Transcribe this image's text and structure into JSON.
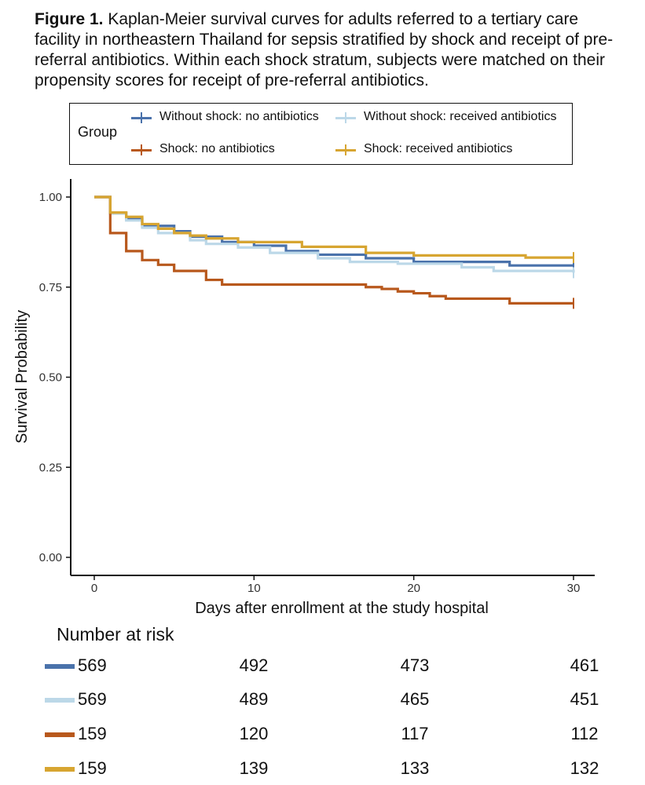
{
  "caption": {
    "label": "Figure 1.",
    "text": "Kaplan-Meier survival curves for adults referred to a tertiary care facility in northeastern Thailand for sepsis stratified by shock and receipt of pre-referral antibiotics. Within each shock stratum, subjects were matched on their propensity scores for receipt of pre-referral antibiotics."
  },
  "legend": {
    "title": "Group",
    "items": [
      {
        "label": "Without shock: no antibiotics",
        "color": "#4a72ab"
      },
      {
        "label": "Without shock: received antibiotics",
        "color": "#bcd8e8"
      },
      {
        "label": "Shock: no antibiotics",
        "color": "#b8581c"
      },
      {
        "label": "Shock: received antibiotics",
        "color": "#d7a531"
      }
    ]
  },
  "chart_data": {
    "type": "line",
    "subtype": "kaplan-meier step",
    "xlabel": "Days after enrollment at the study hospital",
    "ylabel": "Survival Probability",
    "xlim": [
      0,
      30
    ],
    "ylim": [
      0,
      1
    ],
    "x_ticks": [
      "0",
      "10",
      "20",
      "30"
    ],
    "x_tick_values": [
      0,
      10,
      20,
      30
    ],
    "y_ticks": [
      "0.00",
      "0.25",
      "0.50",
      "0.75",
      "1.00"
    ],
    "y_tick_values": [
      0,
      0.25,
      0.5,
      0.75,
      1
    ],
    "series": [
      {
        "name": "Without shock: no antibiotics",
        "color": "#4a72ab",
        "x": [
          0,
          1,
          2,
          3,
          5,
          6,
          8,
          10,
          12,
          14,
          17,
          20,
          26,
          30
        ],
        "y": [
          1.0,
          0.955,
          0.94,
          0.92,
          0.905,
          0.89,
          0.875,
          0.865,
          0.85,
          0.84,
          0.83,
          0.82,
          0.81,
          0.81
        ]
      },
      {
        "name": "Without shock: received antibiotics",
        "color": "#bcd8e8",
        "x": [
          0,
          1,
          2,
          3,
          4,
          6,
          7,
          9,
          11,
          14,
          16,
          19,
          23,
          25,
          30
        ],
        "y": [
          1.0,
          0.955,
          0.935,
          0.915,
          0.9,
          0.88,
          0.87,
          0.86,
          0.845,
          0.83,
          0.82,
          0.815,
          0.805,
          0.795,
          0.79
        ]
      },
      {
        "name": "Shock: no antibiotics",
        "color": "#b8581c",
        "x": [
          0,
          1,
          2,
          3,
          4,
          5,
          7,
          8,
          17,
          18,
          19,
          20,
          21,
          22,
          26,
          30
        ],
        "y": [
          1.0,
          0.9,
          0.85,
          0.825,
          0.812,
          0.795,
          0.77,
          0.757,
          0.75,
          0.745,
          0.738,
          0.733,
          0.725,
          0.718,
          0.705,
          0.705
        ]
      },
      {
        "name": "Shock: received antibiotics",
        "color": "#d7a531",
        "x": [
          0,
          1,
          2,
          3,
          4,
          5,
          6,
          7,
          9,
          13,
          17,
          20,
          27,
          30
        ],
        "y": [
          1.0,
          0.957,
          0.945,
          0.925,
          0.912,
          0.9,
          0.893,
          0.885,
          0.875,
          0.862,
          0.845,
          0.838,
          0.832,
          0.832
        ]
      }
    ]
  },
  "risk_table": {
    "title": "Number at risk",
    "times": [
      0,
      10,
      20,
      30
    ],
    "rows": [
      {
        "color": "#4a72ab",
        "values": [
          "569",
          "492",
          "473",
          "461"
        ]
      },
      {
        "color": "#bcd8e8",
        "values": [
          "569",
          "489",
          "465",
          "451"
        ]
      },
      {
        "color": "#b8581c",
        "values": [
          "159",
          "120",
          "117",
          "112"
        ]
      },
      {
        "color": "#d7a531",
        "values": [
          "159",
          "139",
          "133",
          "132"
        ]
      }
    ]
  }
}
